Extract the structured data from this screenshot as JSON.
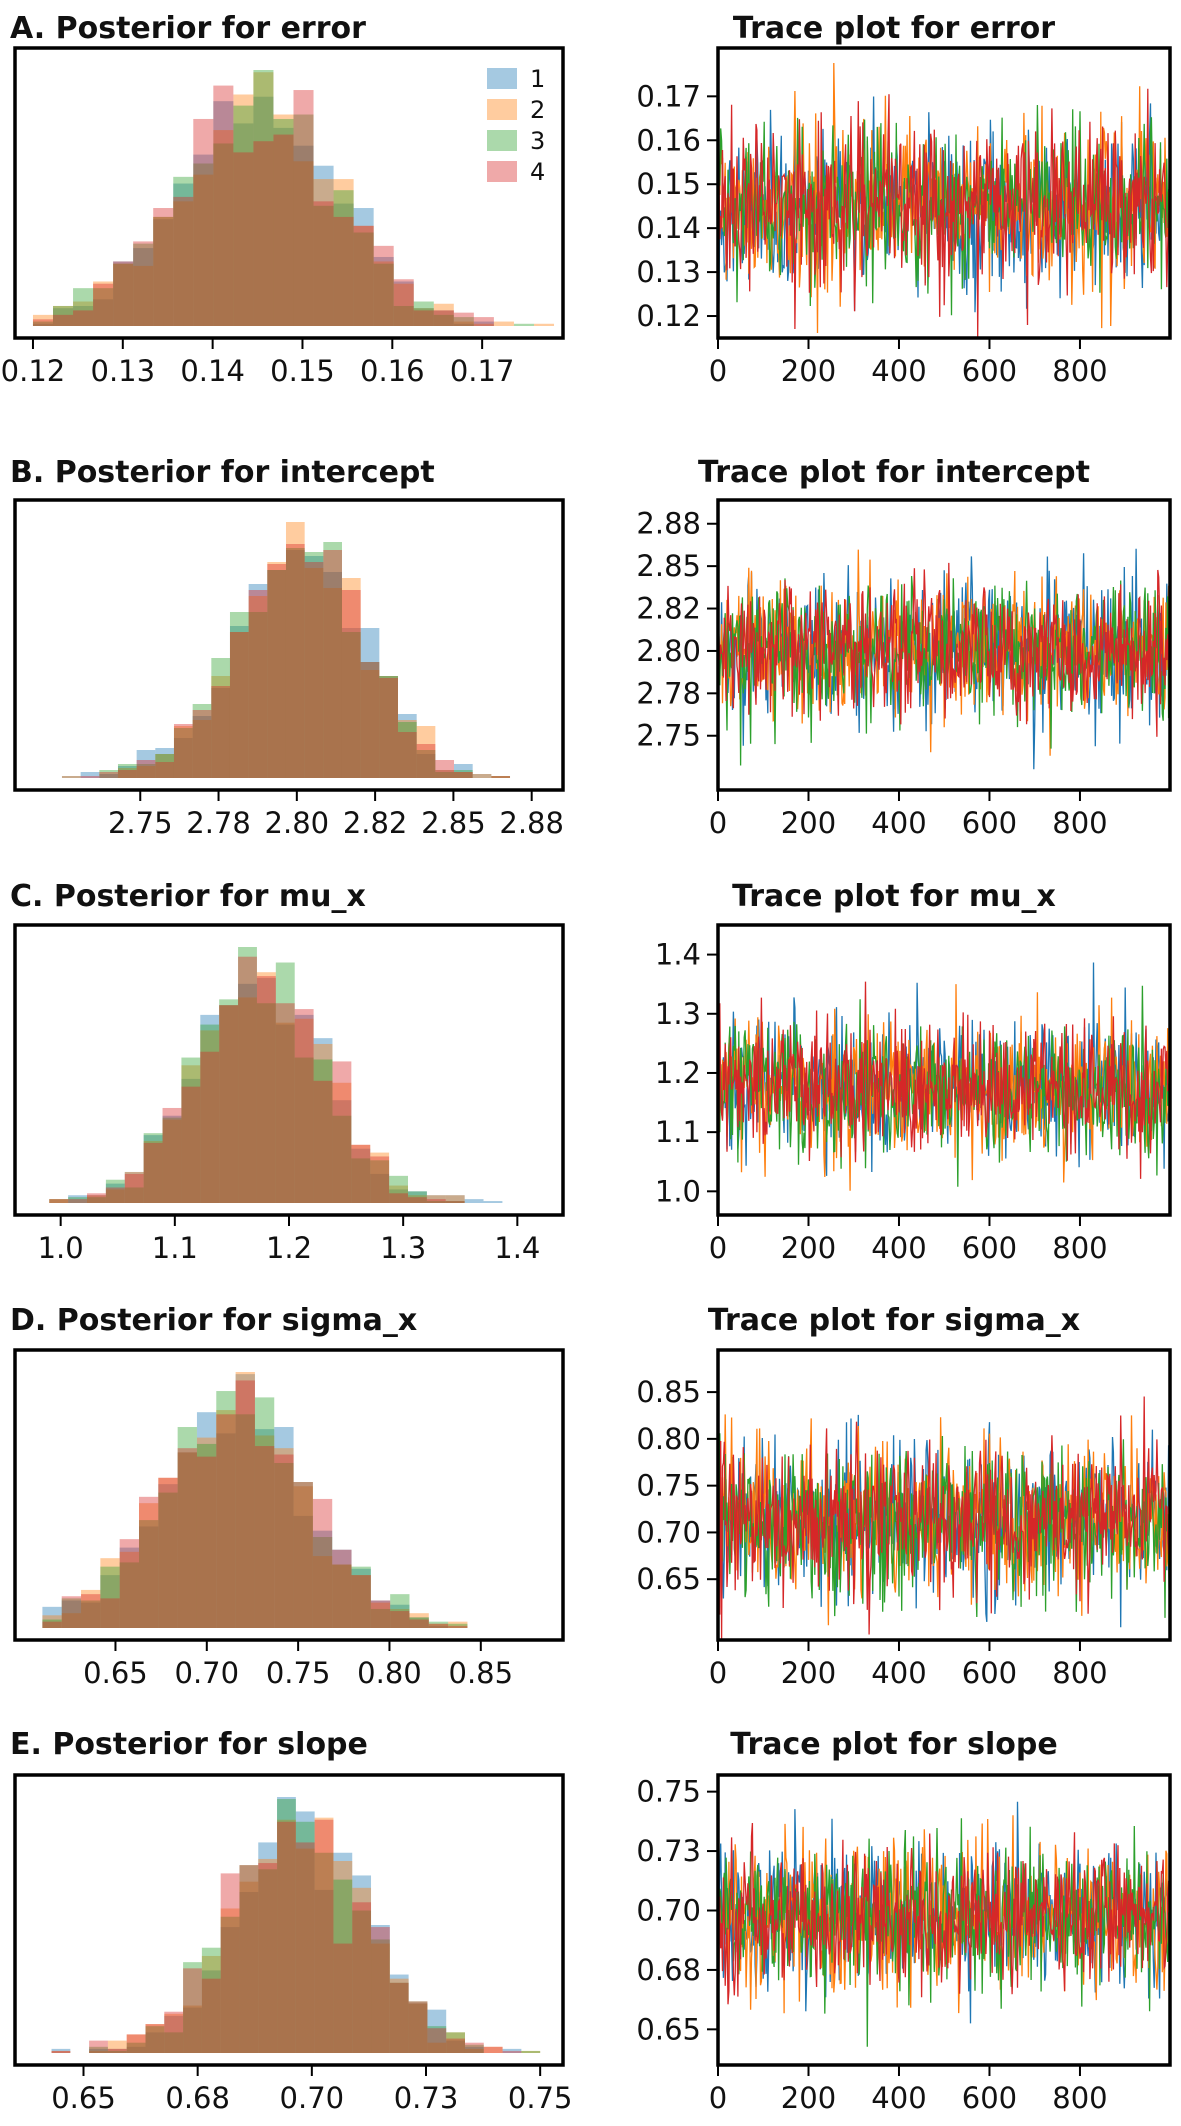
{
  "colors": {
    "chain_1": "#1f77b4",
    "chain_2": "#ff7f0e",
    "chain_3": "#2ca02c",
    "chain_4": "#d62728",
    "frame": "#000000"
  },
  "legend": {
    "placement": "top-right",
    "entries": [
      "1",
      "2",
      "3",
      "4"
    ]
  },
  "chart_data": [
    {
      "type": "histogram",
      "parameter": "error",
      "title": "A. Posterior for error",
      "xticks": [
        "0.12",
        "0.13",
        "0.14",
        "0.15",
        "0.16",
        "0.17"
      ],
      "tick_values": [
        0.12,
        0.13,
        0.14,
        0.15,
        0.16,
        0.17
      ],
      "xlim": [
        0.118,
        0.179
      ],
      "mean": 0.145,
      "sd": 0.009,
      "range": [
        0.12,
        0.178
      ],
      "chains": [
        "1",
        "2",
        "3",
        "4"
      ],
      "legend": true
    },
    {
      "type": "line",
      "parameter": "error",
      "title": "Trace plot for error",
      "xticks": [
        "0",
        "200",
        "400",
        "600",
        "800"
      ],
      "xtick_values": [
        0,
        200,
        400,
        600,
        800
      ],
      "xlim": [
        0,
        999
      ],
      "yticks": [
        "0.17",
        "0.16",
        "0.15",
        "0.14",
        "0.13",
        "0.12"
      ],
      "ytick_values": [
        0.17,
        0.16,
        0.15,
        0.14,
        0.13,
        0.12
      ],
      "ylim": [
        0.115,
        0.181
      ],
      "mean": 0.145,
      "sd": 0.009,
      "draws_per_chain": 1000,
      "chains": [
        "1",
        "2",
        "3",
        "4"
      ]
    },
    {
      "type": "histogram",
      "parameter": "intercept",
      "title": "B. Posterior for intercept",
      "xticks": [
        "2.75",
        "2.78",
        "2.80",
        "2.82",
        "2.85",
        "2.88"
      ],
      "tick_values": [
        2.75,
        2.775,
        2.8,
        2.825,
        2.85,
        2.875
      ],
      "xlim": [
        2.71,
        2.885
      ],
      "mean": 2.801,
      "sd": 0.02,
      "range": [
        2.725,
        2.88
      ],
      "chains": [
        "1",
        "2",
        "3",
        "4"
      ]
    },
    {
      "type": "line",
      "parameter": "intercept",
      "title": "Trace plot for intercept",
      "xticks": [
        "0",
        "200",
        "400",
        "600",
        "800"
      ],
      "xtick_values": [
        0,
        200,
        400,
        600,
        800
      ],
      "xlim": [
        0,
        999
      ],
      "yticks": [
        "2.88",
        "2.85",
        "2.82",
        "2.80",
        "2.78",
        "2.75"
      ],
      "ytick_values": [
        2.875,
        2.85,
        2.825,
        2.8,
        2.775,
        2.75
      ],
      "ylim": [
        2.718,
        2.889
      ],
      "mean": 2.801,
      "sd": 0.02,
      "draws_per_chain": 1000,
      "chains": [
        "1",
        "2",
        "3",
        "4"
      ]
    },
    {
      "type": "histogram",
      "parameter": "mu_x",
      "title": "C. Posterior for mu_x",
      "xticks": [
        "1.0",
        "1.1",
        "1.2",
        "1.3",
        "1.4"
      ],
      "tick_values": [
        1.0,
        1.1,
        1.2,
        1.3,
        1.4
      ],
      "xlim": [
        0.96,
        1.44
      ],
      "mean": 1.175,
      "sd": 0.055,
      "range": [
        0.99,
        1.42
      ],
      "chains": [
        "1",
        "2",
        "3",
        "4"
      ]
    },
    {
      "type": "line",
      "parameter": "mu_x",
      "title": "Trace plot for mu_x",
      "xticks": [
        "0",
        "200",
        "400",
        "600",
        "800"
      ],
      "xtick_values": [
        0,
        200,
        400,
        600,
        800
      ],
      "xlim": [
        0,
        999
      ],
      "yticks": [
        "1.4",
        "1.3",
        "1.2",
        "1.1",
        "1.0"
      ],
      "ytick_values": [
        1.4,
        1.3,
        1.2,
        1.1,
        1.0
      ],
      "ylim": [
        0.96,
        1.45
      ],
      "mean": 1.175,
      "sd": 0.055,
      "draws_per_chain": 1000,
      "chains": [
        "1",
        "2",
        "3",
        "4"
      ]
    },
    {
      "type": "histogram",
      "parameter": "sigma_x",
      "title": "D. Posterior for sigma_x",
      "xticks": [
        "0.65",
        "0.70",
        "0.75",
        "0.80",
        "0.85"
      ],
      "tick_values": [
        0.65,
        0.7,
        0.75,
        0.8,
        0.85
      ],
      "xlim": [
        0.595,
        0.895
      ],
      "mean": 0.715,
      "sd": 0.04,
      "range": [
        0.61,
        0.885
      ],
      "chains": [
        "1",
        "2",
        "3",
        "4"
      ]
    },
    {
      "type": "line",
      "parameter": "sigma_x",
      "title": "Trace plot for sigma_x",
      "xticks": [
        "0",
        "200",
        "400",
        "600",
        "800"
      ],
      "xtick_values": [
        0,
        200,
        400,
        600,
        800
      ],
      "xlim": [
        0,
        999
      ],
      "yticks": [
        "0.85",
        "0.80",
        "0.75",
        "0.70",
        "0.65"
      ],
      "ytick_values": [
        0.85,
        0.8,
        0.75,
        0.7,
        0.65
      ],
      "ylim": [
        0.585,
        0.895
      ],
      "mean": 0.715,
      "sd": 0.04,
      "draws_per_chain": 1000,
      "chains": [
        "1",
        "2",
        "3",
        "4"
      ]
    },
    {
      "type": "histogram",
      "parameter": "slope",
      "title": "E. Posterior for slope",
      "xticks": [
        "0.65",
        "0.68",
        "0.70",
        "0.73",
        "0.75"
      ],
      "tick_values": [
        0.65,
        0.675,
        0.7,
        0.725,
        0.75
      ],
      "xlim": [
        0.635,
        0.755
      ],
      "mean": 0.697,
      "sd": 0.015,
      "range": [
        0.643,
        0.75
      ],
      "chains": [
        "1",
        "2",
        "3",
        "4"
      ]
    },
    {
      "type": "line",
      "parameter": "slope",
      "title": "Trace plot for slope",
      "xticks": [
        "0",
        "200",
        "400",
        "600",
        "800"
      ],
      "xtick_values": [
        0,
        200,
        400,
        600,
        800
      ],
      "xlim": [
        0,
        999
      ],
      "yticks": [
        "0.75",
        "0.73",
        "0.70",
        "0.68",
        "0.65"
      ],
      "ytick_values": [
        0.75,
        0.725,
        0.7,
        0.675,
        0.65
      ],
      "ylim": [
        0.635,
        0.757
      ],
      "mean": 0.697,
      "sd": 0.015,
      "draws_per_chain": 1000,
      "chains": [
        "1",
        "2",
        "3",
        "4"
      ]
    }
  ]
}
